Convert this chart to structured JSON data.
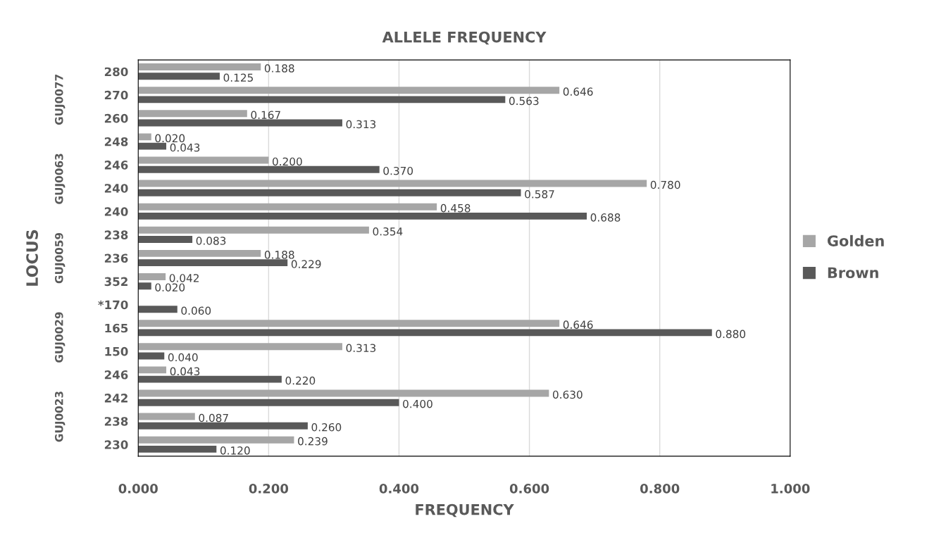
{
  "chart_data": {
    "type": "bar",
    "orientation": "horizontal",
    "title": "ALLELE FREQUENCY",
    "xlabel": "FREQUENCY",
    "ylabel": "LOCUS",
    "categories": [
      "280",
      "270",
      "260",
      "248",
      "246",
      "240",
      "240",
      "238",
      "236",
      "352",
      "*170",
      "165",
      "150",
      "246",
      "242",
      "238",
      "230"
    ],
    "series": [
      {
        "name": "Golden",
        "color": "#a6a6a6",
        "values": [
          0.188,
          0.646,
          0.167,
          0.02,
          0.2,
          0.78,
          0.458,
          0.354,
          0.188,
          0.042,
          null,
          0.646,
          0.313,
          0.043,
          0.63,
          0.087,
          0.239
        ],
        "value_labels": [
          "0.188",
          "0.646",
          "0.167",
          "0.020",
          "0.200",
          "0.780",
          "0.458",
          "0.354",
          "0.188",
          "0.042",
          null,
          "0.646",
          "0.313",
          "0.043",
          "0.630",
          "0.087",
          "0.239"
        ]
      },
      {
        "name": "Brown",
        "color": "#595959",
        "values": [
          0.125,
          0.563,
          0.313,
          0.043,
          0.37,
          0.587,
          0.688,
          0.083,
          0.229,
          0.02,
          0.06,
          0.88,
          0.04,
          0.22,
          0.4,
          0.26,
          0.12
        ],
        "value_labels": [
          "0.125",
          "0.563",
          "0.313",
          "0.043",
          "0.370",
          "0.587",
          "0.688",
          "0.083",
          "0.229",
          "0.020",
          "0.060",
          "0.880",
          "0.040",
          "0.220",
          "0.400",
          "0.260",
          "0.120"
        ]
      }
    ],
    "annotations": [
      "GUJ0077",
      "GUJ0063",
      "GUJ0059",
      "GUJ0029",
      "GUJ0023"
    ],
    "xlim": [
      0,
      1
    ],
    "xticks": [
      {
        "value": 0,
        "label": "0.000"
      },
      {
        "value": 0.2,
        "label": "0.200"
      },
      {
        "value": 0.4,
        "label": "0.400"
      },
      {
        "value": 0.6,
        "label": "0.600"
      },
      {
        "value": 0.8,
        "label": "0.800"
      },
      {
        "value": 1,
        "label": "1.000"
      }
    ],
    "grid": "x",
    "legend": "right"
  }
}
